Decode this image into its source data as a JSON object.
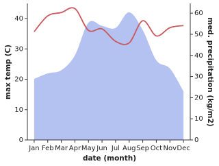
{
  "chart_data": {
    "type": "line",
    "categories": [
      "Jan",
      "Feb",
      "Mar",
      "Apr",
      "May",
      "Jun",
      "Jul",
      "Aug",
      "Sep",
      "Oct",
      "Nov",
      "Dec"
    ],
    "x_label": "date (month)",
    "y_label": "max temp (C)",
    "y2_label": "med. precipitation (kg/m2)",
    "ylim": [
      0,
      45
    ],
    "yticks": [
      0,
      10,
      20,
      30,
      40
    ],
    "y2lim": [
      0,
      64.6
    ],
    "y2ticks": [
      0,
      10,
      20,
      30,
      40,
      50,
      60
    ],
    "series": [
      {
        "name": "med. precipitation",
        "type": "area",
        "axis": "y2",
        "color": "#b4c2f2",
        "values": [
          28.9,
          31.5,
          33,
          40,
          55.5,
          54,
          53,
          60.4,
          52,
          37.7,
          33.8,
          23
        ]
      },
      {
        "name": "max temp",
        "type": "line",
        "axis": "y",
        "color": "#c85a5e",
        "values": [
          35.7,
          40.9,
          42,
          43.3,
          36.1,
          36.6,
          32.5,
          32,
          39.3,
          34.3,
          37,
          37.7
        ]
      }
    ]
  }
}
